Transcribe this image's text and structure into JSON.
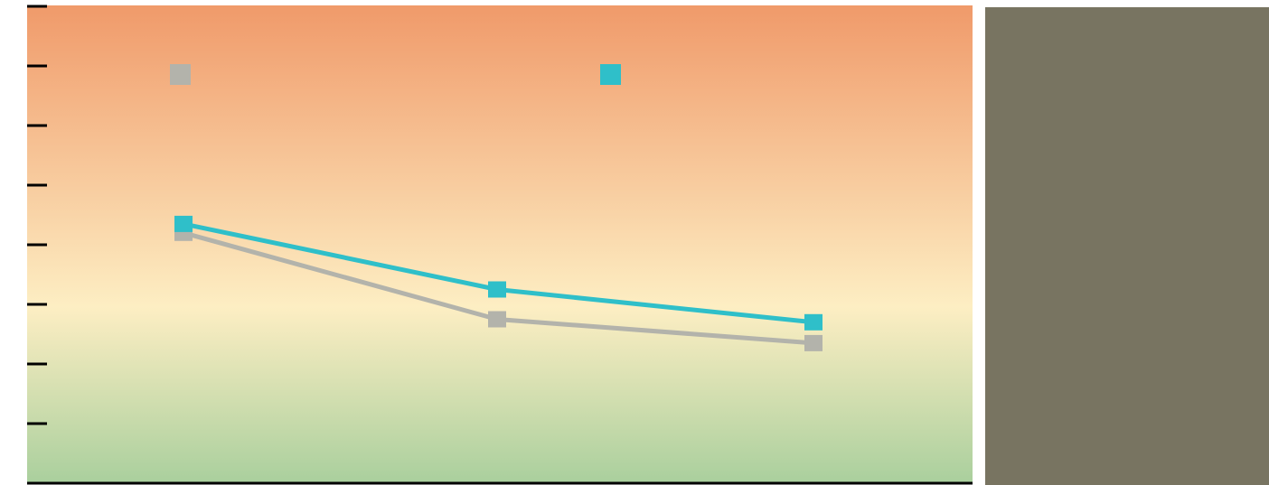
{
  "colors": {
    "background_top": "#f09a6a",
    "background_mid": "#fdeec3",
    "background_bottom": "#a9cf9d",
    "axis": "#000000",
    "side_panel": "#787461"
  },
  "chart_data": {
    "type": "line",
    "title": "",
    "xlabel": "",
    "ylabel": "",
    "x": [
      1,
      2,
      3
    ],
    "ylim": [
      0,
      8
    ],
    "y_ticks": [
      0,
      1,
      2,
      3,
      4,
      5,
      6,
      7,
      8
    ],
    "grid": false,
    "legend": {
      "placement": "top",
      "markers": [
        "#b3b3ab",
        "#2fbfc9"
      ]
    },
    "series": [
      {
        "color": "#b3b3ab",
        "values": [
          4.2,
          2.75,
          2.35
        ]
      },
      {
        "color": "#2fbfc9",
        "values": [
          4.35,
          3.25,
          2.7
        ]
      }
    ]
  }
}
